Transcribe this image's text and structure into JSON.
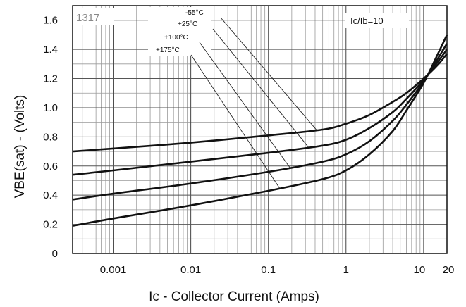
{
  "chart_data": {
    "type": "line",
    "chart_code": "1317",
    "condition": "Ic/Ib=10",
    "xlabel": "Ic - Collector Current (Amps)",
    "ylabel": "VBE(sat) - (Volts)",
    "x_scale": "log",
    "xlim": [
      0.0003,
      20
    ],
    "ylim": [
      0,
      1.7
    ],
    "x_ticks": [
      0.001,
      0.01,
      0.1,
      1,
      10,
      20
    ],
    "x_tick_labels": [
      "0.001",
      "0.01",
      "0.1",
      "1",
      "10",
      "20"
    ],
    "y_ticks": [
      0,
      0.2,
      0.4,
      0.6,
      0.8,
      1.0,
      1.2,
      1.4,
      1.6
    ],
    "y_tick_labels": [
      "0",
      "0.2",
      "0.4",
      "0.6",
      "0.8",
      "1.0",
      "1.2",
      "1.4",
      "1.6"
    ],
    "grid": true,
    "series": [
      {
        "name": "-55°C",
        "x": [
          0.0003,
          0.001,
          0.01,
          0.1,
          0.5,
          1,
          2,
          4,
          6,
          10,
          15,
          20
        ],
        "y": [
          0.7,
          0.72,
          0.76,
          0.81,
          0.85,
          0.89,
          0.95,
          1.04,
          1.1,
          1.2,
          1.29,
          1.37
        ]
      },
      {
        "name": "+25°C",
        "x": [
          0.0003,
          0.001,
          0.01,
          0.1,
          0.5,
          1,
          2,
          4,
          6,
          10,
          15,
          20
        ],
        "y": [
          0.54,
          0.57,
          0.63,
          0.69,
          0.74,
          0.78,
          0.86,
          0.97,
          1.06,
          1.19,
          1.31,
          1.4
        ]
      },
      {
        "name": "+100°C",
        "x": [
          0.0003,
          0.001,
          0.01,
          0.1,
          0.5,
          1,
          2,
          4,
          6,
          10,
          15,
          20
        ],
        "y": [
          0.37,
          0.41,
          0.48,
          0.56,
          0.63,
          0.68,
          0.77,
          0.91,
          1.02,
          1.18,
          1.33,
          1.44
        ]
      },
      {
        "name": "+175°C",
        "x": [
          0.0003,
          0.001,
          0.01,
          0.1,
          0.5,
          1,
          2,
          4,
          6,
          10,
          15,
          20
        ],
        "y": [
          0.19,
          0.24,
          0.33,
          0.43,
          0.51,
          0.57,
          0.68,
          0.84,
          0.98,
          1.17,
          1.36,
          1.5
        ]
      }
    ]
  }
}
